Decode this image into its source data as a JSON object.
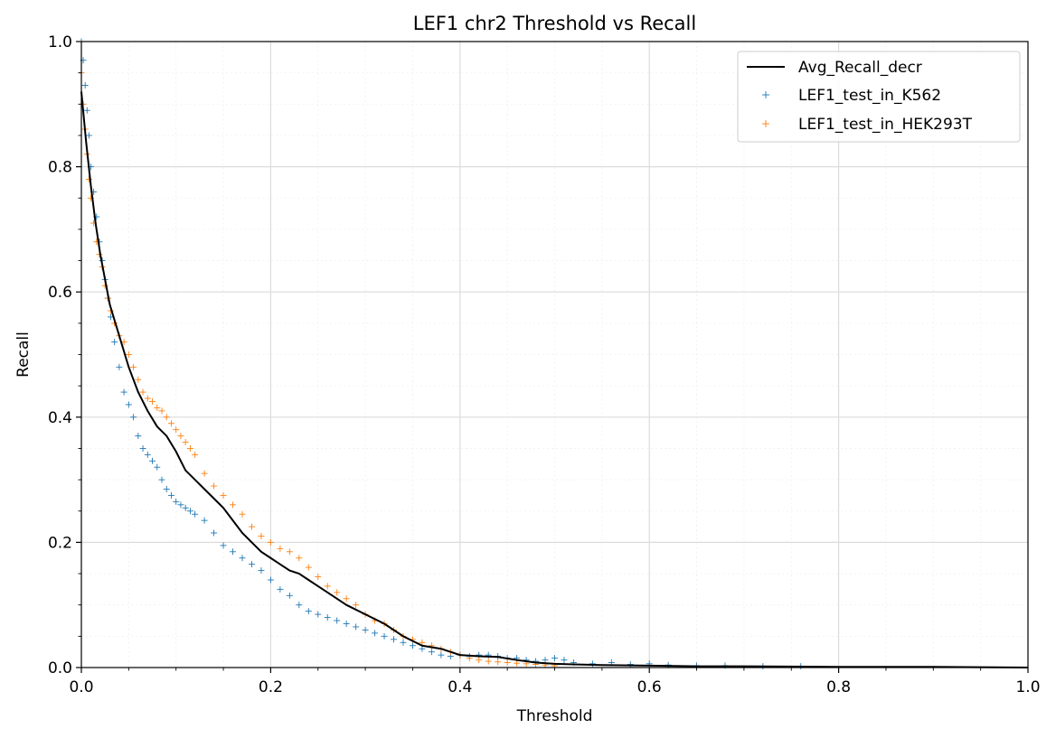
{
  "chart_data": {
    "type": "scatter",
    "title": "LEF1 chr2 Threshold vs Recall",
    "xlabel": "Threshold",
    "ylabel": "Recall",
    "xlim": [
      0.0,
      1.0
    ],
    "ylim": [
      0.0,
      1.0
    ],
    "xticks": [
      "0.0",
      "0.2",
      "0.4",
      "0.6",
      "0.8",
      "1.0"
    ],
    "yticks": [
      "0.0",
      "0.2",
      "0.4",
      "0.6",
      "0.8",
      "1.0"
    ],
    "grid": true,
    "minor_grid": true,
    "legend_position": "top-right",
    "series": [
      {
        "name": "Avg_Recall_decr",
        "kind": "line",
        "color": "#000000",
        "x": [
          0.0,
          0.005,
          0.01,
          0.015,
          0.02,
          0.025,
          0.03,
          0.04,
          0.05,
          0.06,
          0.07,
          0.08,
          0.09,
          0.1,
          0.11,
          0.12,
          0.13,
          0.14,
          0.15,
          0.16,
          0.17,
          0.18,
          0.19,
          0.2,
          0.21,
          0.22,
          0.23,
          0.24,
          0.25,
          0.26,
          0.28,
          0.3,
          0.32,
          0.34,
          0.36,
          0.38,
          0.4,
          0.42,
          0.44,
          0.46,
          0.48,
          0.5,
          0.52,
          0.55,
          0.6,
          0.65,
          0.7,
          0.8,
          0.9,
          1.0
        ],
        "y": [
          0.92,
          0.84,
          0.77,
          0.71,
          0.66,
          0.62,
          0.58,
          0.53,
          0.48,
          0.44,
          0.41,
          0.385,
          0.37,
          0.345,
          0.315,
          0.3,
          0.285,
          0.27,
          0.255,
          0.235,
          0.215,
          0.2,
          0.185,
          0.175,
          0.165,
          0.155,
          0.15,
          0.14,
          0.13,
          0.12,
          0.1,
          0.085,
          0.07,
          0.05,
          0.035,
          0.03,
          0.02,
          0.018,
          0.017,
          0.012,
          0.008,
          0.006,
          0.005,
          0.004,
          0.003,
          0.002,
          0.002,
          0.001,
          0.001,
          0.0
        ]
      },
      {
        "name": "LEF1_test_in_K562",
        "kind": "scatter",
        "marker": "+",
        "color": "#1f77b4",
        "x": [
          0.0,
          0.002,
          0.004,
          0.006,
          0.008,
          0.01,
          0.013,
          0.016,
          0.019,
          0.022,
          0.025,
          0.028,
          0.031,
          0.035,
          0.04,
          0.045,
          0.05,
          0.055,
          0.06,
          0.065,
          0.07,
          0.075,
          0.08,
          0.085,
          0.09,
          0.095,
          0.1,
          0.105,
          0.11,
          0.115,
          0.12,
          0.13,
          0.14,
          0.15,
          0.16,
          0.17,
          0.18,
          0.19,
          0.2,
          0.21,
          0.22,
          0.23,
          0.24,
          0.25,
          0.26,
          0.27,
          0.28,
          0.29,
          0.3,
          0.31,
          0.32,
          0.33,
          0.34,
          0.35,
          0.36,
          0.37,
          0.38,
          0.39,
          0.4,
          0.41,
          0.42,
          0.43,
          0.44,
          0.45,
          0.46,
          0.47,
          0.48,
          0.49,
          0.5,
          0.51,
          0.52,
          0.54,
          0.56,
          0.58,
          0.6,
          0.62,
          0.65,
          0.68,
          0.72,
          0.76
        ],
        "y": [
          1.0,
          0.97,
          0.93,
          0.89,
          0.85,
          0.8,
          0.76,
          0.72,
          0.68,
          0.65,
          0.62,
          0.59,
          0.56,
          0.52,
          0.48,
          0.44,
          0.42,
          0.4,
          0.37,
          0.35,
          0.34,
          0.33,
          0.32,
          0.3,
          0.285,
          0.275,
          0.265,
          0.26,
          0.255,
          0.25,
          0.245,
          0.235,
          0.215,
          0.195,
          0.185,
          0.175,
          0.165,
          0.155,
          0.14,
          0.125,
          0.115,
          0.1,
          0.09,
          0.085,
          0.08,
          0.075,
          0.07,
          0.065,
          0.06,
          0.055,
          0.05,
          0.045,
          0.04,
          0.035,
          0.03,
          0.025,
          0.02,
          0.018,
          0.02,
          0.018,
          0.02,
          0.02,
          0.018,
          0.015,
          0.015,
          0.012,
          0.01,
          0.012,
          0.015,
          0.012,
          0.008,
          0.006,
          0.008,
          0.005,
          0.006,
          0.004,
          0.003,
          0.003,
          0.002,
          0.002
        ]
      },
      {
        "name": "LEF1_test_in_HEK293T",
        "kind": "scatter",
        "marker": "+",
        "color": "#ff7f0e",
        "x": [
          0.0,
          0.002,
          0.004,
          0.006,
          0.008,
          0.01,
          0.013,
          0.016,
          0.019,
          0.022,
          0.025,
          0.028,
          0.031,
          0.035,
          0.04,
          0.045,
          0.05,
          0.055,
          0.06,
          0.065,
          0.07,
          0.075,
          0.08,
          0.085,
          0.09,
          0.095,
          0.1,
          0.105,
          0.11,
          0.115,
          0.12,
          0.13,
          0.14,
          0.15,
          0.16,
          0.17,
          0.18,
          0.19,
          0.2,
          0.21,
          0.22,
          0.23,
          0.24,
          0.25,
          0.26,
          0.27,
          0.28,
          0.29,
          0.3,
          0.31,
          0.32,
          0.33,
          0.34,
          0.35,
          0.36,
          0.37,
          0.38,
          0.39,
          0.4,
          0.41,
          0.42,
          0.43,
          0.44,
          0.45,
          0.46,
          0.47,
          0.48,
          0.49,
          0.5
        ],
        "y": [
          0.95,
          0.9,
          0.86,
          0.82,
          0.78,
          0.75,
          0.71,
          0.68,
          0.66,
          0.64,
          0.61,
          0.59,
          0.57,
          0.55,
          0.53,
          0.52,
          0.5,
          0.48,
          0.46,
          0.44,
          0.43,
          0.425,
          0.415,
          0.41,
          0.4,
          0.39,
          0.38,
          0.37,
          0.36,
          0.35,
          0.34,
          0.31,
          0.29,
          0.275,
          0.26,
          0.245,
          0.225,
          0.21,
          0.2,
          0.19,
          0.185,
          0.175,
          0.16,
          0.145,
          0.13,
          0.12,
          0.11,
          0.1,
          0.085,
          0.075,
          0.07,
          0.06,
          0.05,
          0.045,
          0.04,
          0.035,
          0.03,
          0.025,
          0.02,
          0.015,
          0.012,
          0.01,
          0.009,
          0.008,
          0.007,
          0.006,
          0.005,
          0.004,
          0.003
        ]
      }
    ]
  }
}
